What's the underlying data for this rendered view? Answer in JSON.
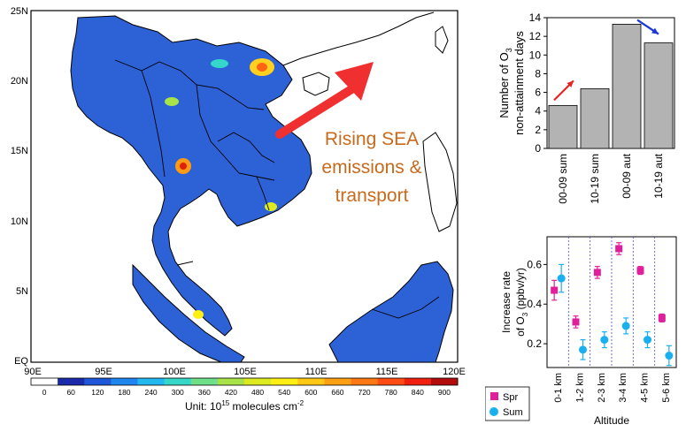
{
  "map": {
    "lat_ticks": [
      "25N",
      "20N",
      "15N",
      "10N",
      "5N",
      "EQ"
    ],
    "lon_ticks": [
      "90E",
      "95E",
      "100E",
      "105E",
      "110E",
      "115E",
      "120E"
    ],
    "colorbar_ticks": [
      "0",
      "60",
      "120",
      "180",
      "240",
      "300",
      "360",
      "420",
      "480",
      "540",
      "600",
      "660",
      "720",
      "780",
      "840",
      "900"
    ],
    "colorbar_colors": [
      "#ffffff",
      "#1a2aa8",
      "#1d56d8",
      "#1f86f0",
      "#22b8f0",
      "#35d8c8",
      "#6ee08a",
      "#a8e448",
      "#dcea20",
      "#fff014",
      "#ffc814",
      "#ffa014",
      "#ff7814",
      "#ff4c14",
      "#f02010",
      "#b40c0c"
    ],
    "unit_label": "Unit: 10",
    "unit_exponent": "15",
    "unit_suffix": " molecules cm",
    "unit_suffix_exponent": "-2",
    "annotation_lines": [
      "Rising SEA",
      "emissions &",
      "transport"
    ],
    "annotation_color": "#c76a1c",
    "arrow_color": "#f03030",
    "land_fill": "#2d62d6"
  },
  "chart_data": [
    {
      "type": "bar",
      "categories": [
        "00-09 sum",
        "10-19 sum",
        "00-09 aut",
        "10-19 aut"
      ],
      "values": [
        4.6,
        6.4,
        13.3,
        11.3
      ],
      "ylim": [
        0,
        14
      ],
      "yticks": [
        "0",
        "2",
        "4",
        "6",
        "8",
        "10",
        "12",
        "14"
      ],
      "ylabel_line1": "Number of O",
      "ylabel_sub": "3",
      "ylabel_line2": "non-attainment days",
      "bar_color": "#b3b3b3",
      "arrows": [
        {
          "from_category": 0,
          "color": "#e82020"
        },
        {
          "from_category": 3,
          "color": "#1a3ad8"
        }
      ]
    },
    {
      "type": "scatter",
      "categories": [
        "0-1 km",
        "1-2 km",
        "2-3 km",
        "3-4 km",
        "4-5 km",
        "5-6 km"
      ],
      "xlabel": "Altitude",
      "ylabel_line1": "Increase rate",
      "ylabel_line2": "of O",
      "ylabel_sub": "3",
      "ylabel_suffix": " (ppbv/yr)",
      "ylim": [
        0.08,
        0.74
      ],
      "yticks": [
        0.2,
        0.4,
        0.6
      ],
      "ytick_labels": [
        "0.2",
        "0.4",
        "0.6"
      ],
      "series": [
        {
          "name": "Spr",
          "color": "#e0209a",
          "marker": "square",
          "values": [
            0.47,
            0.31,
            0.56,
            0.68,
            0.57,
            0.33
          ],
          "errors": [
            0.05,
            0.03,
            0.03,
            0.03,
            0.02,
            0.02
          ]
        },
        {
          "name": "Sum",
          "color": "#1ab0f0",
          "marker": "circle",
          "values": [
            0.53,
            0.17,
            0.22,
            0.29,
            0.22,
            0.14
          ],
          "errors": [
            0.07,
            0.05,
            0.04,
            0.04,
            0.04,
            0.05
          ]
        }
      ]
    }
  ]
}
